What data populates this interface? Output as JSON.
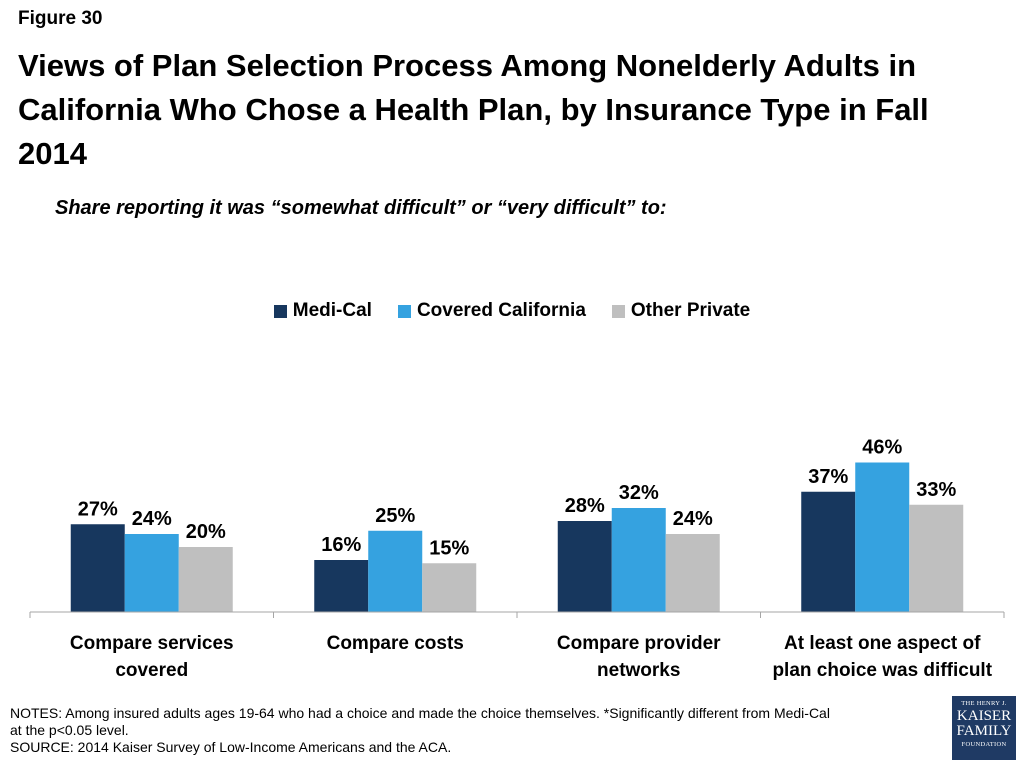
{
  "figure_label": "Figure 30",
  "title": "Views of Plan Selection Process Among Nonelderly Adults in California Who Chose a Health Plan, by Insurance Type in Fall 2014",
  "subtitle": "Share reporting it was “somewhat difficult” or “very difficult” to:",
  "chart_data": {
    "type": "bar",
    "categories": [
      [
        "Compare services",
        "covered"
      ],
      [
        "Compare costs"
      ],
      [
        "Compare provider",
        "networks"
      ],
      [
        "At least one aspect of",
        "plan choice was difficult"
      ]
    ],
    "series": [
      {
        "name": "Medi-Cal",
        "color": "#17375e",
        "values": [
          27,
          16,
          28,
          37
        ],
        "labels": [
          "27%",
          "16%",
          "28%",
          "37%"
        ]
      },
      {
        "name": "Covered California",
        "color": "#35a2e0",
        "values": [
          24,
          25,
          32,
          46
        ],
        "labels": [
          "24%",
          "25%",
          "32%",
          "46%"
        ]
      },
      {
        "name": "Other Private",
        "color": "#bfbfbf",
        "values": [
          20,
          15,
          24,
          33
        ],
        "labels": [
          "20%",
          "15%",
          "24%",
          "33%"
        ]
      }
    ],
    "ylim": [
      0,
      50
    ],
    "legend_position": "top-center",
    "grid": false
  },
  "notes": {
    "line1": "NOTES: Among insured adults ages 19-64 who had a choice and made the choice themselves. *Significantly different from Medi-Cal",
    "line2": "at the p<0.05 level.",
    "line3": " SOURCE: 2014 Kaiser Survey of Low-Income Americans and the ACA."
  },
  "logo": {
    "line1": "THE HENRY J.",
    "line2": "KAISER",
    "line3": "FAMILY",
    "line4": "FOUNDATION"
  }
}
